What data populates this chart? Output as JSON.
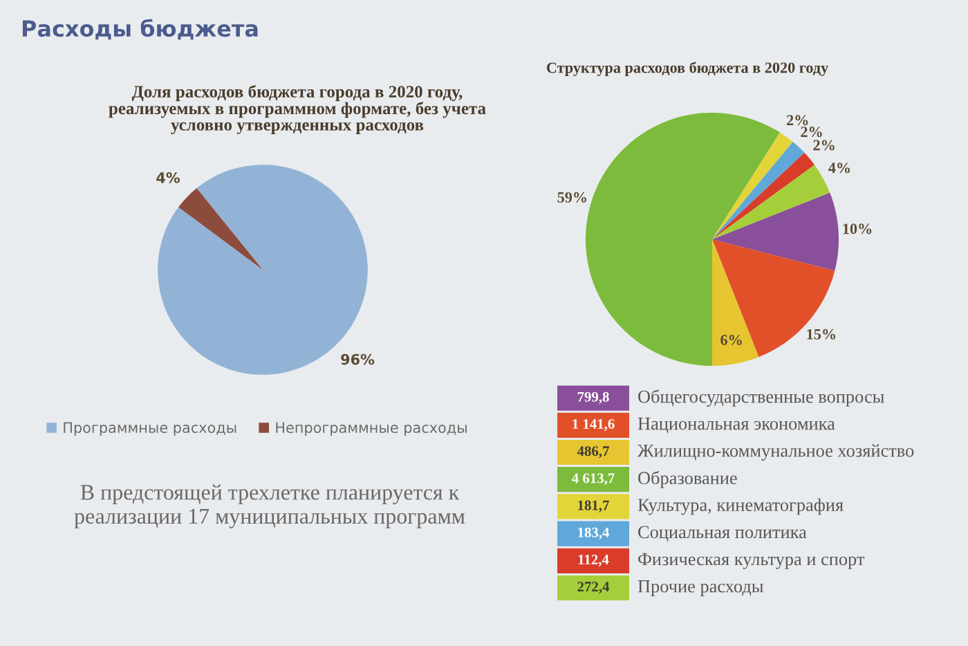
{
  "chart_data": [
    {
      "type": "pie",
      "title": "Доля расходов бюджета города в 2020 году,\nреализуемых в программном формате, без учета\nусловно утвержденных расходов",
      "categories": [
        "Программные расходы",
        "Непрограммные расходы"
      ],
      "values": [
        96,
        4
      ],
      "colors": [
        "#92b3d6",
        "#8d4b3e"
      ],
      "value_labels": [
        "96%",
        "4%"
      ],
      "legend": "bottom",
      "annotations": [
        "Расходы бюджета",
        "В предстоящей трехлетке планируется к\nреализации 17 муниципальных программ"
      ]
    },
    {
      "type": "pie",
      "title": "Структура расходов бюджета в 2020 году",
      "categories": [
        "Общегосударственные вопросы",
        "Национальная экономика",
        "Жилищно-коммунальное хозяйство",
        "Образование",
        "Культура, кинематография",
        "Социальная политика",
        "Физическая культура и спорт",
        "Прочие расходы"
      ],
      "values": [
        10,
        15,
        6,
        59,
        2,
        2,
        2,
        4
      ],
      "colors": [
        "#8a4f9a",
        "#e2502a",
        "#e6c531",
        "#7dbb3c",
        "#e3d43a",
        "#5fa8d9",
        "#d93d2a",
        "#a5cf3a"
      ],
      "value_labels": [
        "10%",
        "15%",
        "6%",
        "59%",
        "2%",
        "2%",
        "2%",
        "4%"
      ],
      "legend": "bottom",
      "annotations": [
        {
          "text": "799,8",
          "x": "Общегосударственные вопросы"
        },
        {
          "text": "1 141,6",
          "x": "Национальная экономика"
        },
        {
          "text": "486,7",
          "x": "Жилищно-коммунальное хозяйство"
        },
        {
          "text": "4 613,7",
          "x": "Образование"
        },
        {
          "text": "181,7",
          "x": "Культура, кинематография"
        },
        {
          "text": "183,4",
          "x": "Социальная политика"
        },
        {
          "text": "112,4",
          "x": "Физическая культура и спорт"
        },
        {
          "text": "272,4",
          "x": "Прочие расходы"
        }
      ]
    }
  ]
}
